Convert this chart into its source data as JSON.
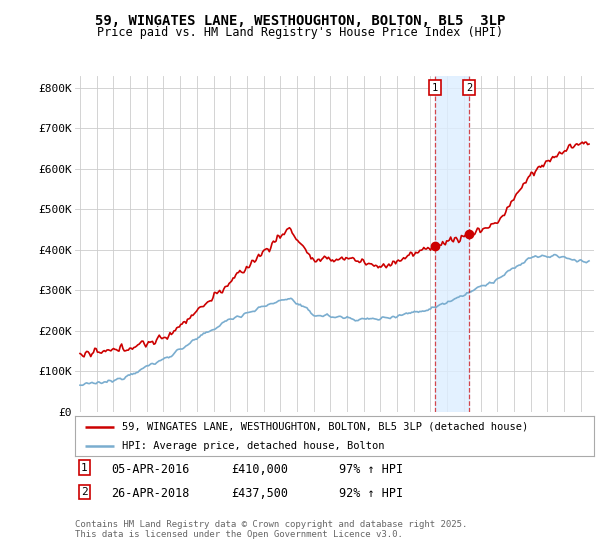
{
  "title": "59, WINGATES LANE, WESTHOUGHTON, BOLTON, BL5  3LP",
  "subtitle": "Price paid vs. HM Land Registry's House Price Index (HPI)",
  "legend_line1": "59, WINGATES LANE, WESTHOUGHTON, BOLTON, BL5 3LP (detached house)",
  "legend_line2": "HPI: Average price, detached house, Bolton",
  "annotation1": [
    "1",
    "05-APR-2016",
    "£410,000",
    "97% ↑ HPI"
  ],
  "annotation2": [
    "2",
    "26-APR-2018",
    "£437,500",
    "92% ↑ HPI"
  ],
  "footer": "Contains HM Land Registry data © Crown copyright and database right 2025.\nThis data is licensed under the Open Government Licence v3.0.",
  "hpi_color": "#7aadcf",
  "price_color": "#cc0000",
  "vline_color": "#cc0000",
  "shade_color": "#ddeeff",
  "background_color": "#ffffff",
  "grid_color": "#cccccc",
  "ylim": [
    0,
    830000
  ],
  "yticks": [
    0,
    100000,
    200000,
    300000,
    400000,
    500000,
    600000,
    700000,
    800000
  ],
  "ytick_labels": [
    "£0",
    "£100K",
    "£200K",
    "£300K",
    "£400K",
    "£500K",
    "£600K",
    "£700K",
    "£800K"
  ],
  "marker1_x": 2016.27,
  "marker1_y": 410000,
  "marker2_x": 2018.32,
  "marker2_y": 437500,
  "xlim_left": 1994.7,
  "xlim_right": 2025.8
}
